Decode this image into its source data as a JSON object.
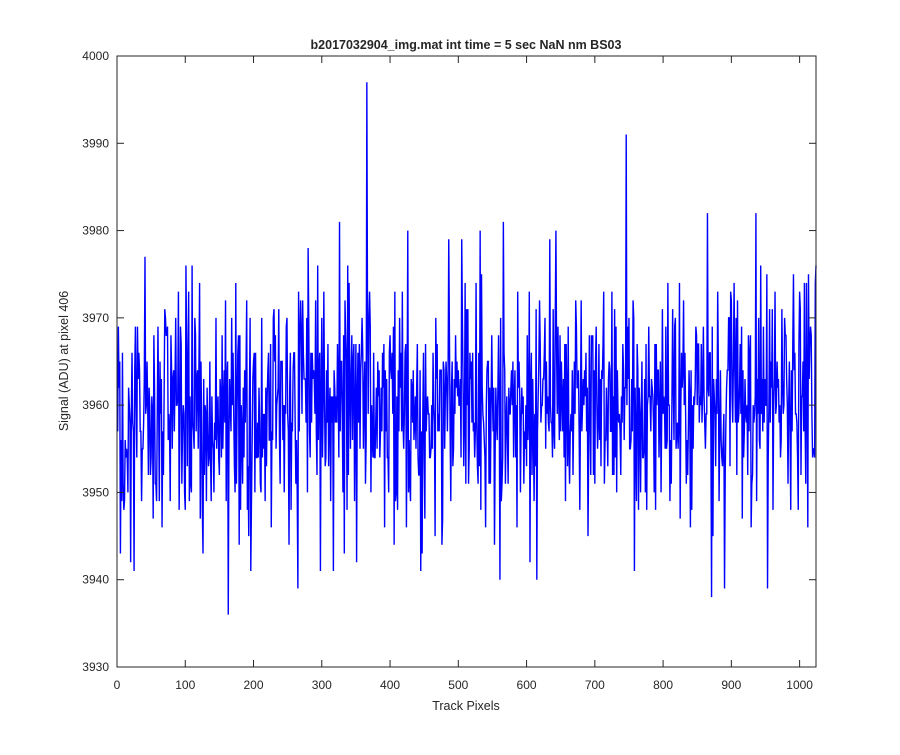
{
  "chart_data": {
    "type": "line",
    "title": "b2017032904_img.mat int time = 5 sec  NaN nm BS03",
    "xlabel": "Track Pixels",
    "ylabel": "Signal (ADU) at pixel 406",
    "xlim": [
      0,
      1024
    ],
    "ylim": [
      3930,
      4000
    ],
    "xticks": [
      0,
      100,
      200,
      300,
      400,
      500,
      600,
      700,
      800,
      900,
      1000
    ],
    "yticks": [
      3930,
      3940,
      3950,
      3960,
      3970,
      3980,
      3990,
      4000
    ],
    "grid": false,
    "series": [
      {
        "name": "",
        "color": "#0000ff",
        "x_start": 1,
        "x_step": 1,
        "noise_seed": 20170329,
        "noise_mean": 3960,
        "noise_std": 6.5,
        "noise_min": 3936,
        "noise_max": 3997,
        "points": [
          [
            1,
            3957
          ],
          [
            5,
            3943
          ],
          [
            8,
            3966
          ],
          [
            12,
            3956
          ],
          [
            16,
            3950
          ],
          [
            20,
            3942
          ],
          [
            25,
            3941
          ],
          [
            30,
            3969
          ],
          [
            36,
            3949
          ],
          [
            41,
            3977
          ],
          [
            47,
            3962
          ],
          [
            53,
            3947
          ],
          [
            60,
            3969
          ],
          [
            66,
            3946
          ],
          [
            72,
            3968
          ],
          [
            78,
            3949
          ],
          [
            85,
            3963
          ],
          [
            91,
            3948
          ],
          [
            98,
            3959
          ],
          [
            101,
            3976
          ],
          [
            106,
            3949
          ],
          [
            110,
            3976
          ],
          [
            116,
            3957
          ],
          [
            121,
            3974
          ],
          [
            126,
            3943
          ],
          [
            132,
            3962
          ],
          [
            138,
            3949
          ],
          [
            145,
            3970
          ],
          [
            150,
            3952
          ],
          [
            156,
            3960
          ],
          [
            163,
            3936
          ],
          [
            168,
            3970
          ],
          [
            174,
            3974
          ],
          [
            181,
            3948
          ],
          [
            189,
            3964
          ],
          [
            196,
            3941
          ],
          [
            203,
            3966
          ],
          [
            210,
            3951
          ],
          [
            218,
            3962
          ],
          [
            226,
            3946
          ],
          [
            232,
            3968
          ],
          [
            238,
            3956
          ],
          [
            245,
            3950
          ],
          [
            252,
            3944
          ],
          [
            258,
            3964
          ],
          [
            265,
            3939
          ],
          [
            272,
            3972
          ],
          [
            279,
            3950
          ],
          [
            286,
            3966
          ],
          [
            293,
            3952
          ],
          [
            300,
            3970
          ],
          [
            306,
            3954
          ],
          [
            313,
            3949
          ],
          [
            319,
            3962
          ],
          [
            326,
            3981
          ],
          [
            333,
            3943
          ],
          [
            338,
            3976
          ],
          [
            345,
            3956
          ],
          [
            351,
            3942
          ],
          [
            357,
            3964
          ],
          [
            366,
            3997
          ],
          [
            372,
            3950
          ],
          [
            379,
            3958
          ],
          [
            385,
            3954
          ],
          [
            392,
            3946
          ],
          [
            399,
            3966
          ],
          [
            406,
            3944
          ],
          [
            413,
            3957
          ],
          [
            420,
            3955
          ],
          [
            426,
            3980
          ],
          [
            432,
            3962
          ],
          [
            438,
            3955
          ],
          [
            445,
            3941
          ],
          [
            452,
            3967
          ],
          [
            459,
            3954
          ],
          [
            466,
            3945
          ],
          [
            473,
            3964
          ],
          [
            480,
            3955
          ],
          [
            486,
            3979
          ],
          [
            492,
            3953
          ],
          [
            499,
            3961
          ],
          [
            505,
            3979
          ],
          [
            511,
            3951
          ],
          [
            518,
            3963
          ],
          [
            525,
            3957
          ],
          [
            532,
            3980
          ],
          [
            539,
            3954
          ],
          [
            546,
            3962
          ],
          [
            553,
            3944
          ],
          [
            560,
            3960
          ],
          [
            566,
            3981
          ],
          [
            572,
            3956
          ],
          [
            579,
            3960
          ],
          [
            586,
            3946
          ],
          [
            593,
            3962
          ],
          [
            600,
            3953
          ],
          [
            607,
            3966
          ],
          [
            615,
            3940
          ],
          [
            622,
            3960
          ],
          [
            628,
            3955
          ],
          [
            634,
            3979
          ],
          [
            640,
            3957
          ],
          [
            647,
            3961
          ],
          [
            654,
            3963
          ],
          [
            660,
            3953
          ],
          [
            666,
            3957
          ],
          [
            672,
            3972
          ],
          [
            678,
            3948
          ],
          [
            684,
            3960
          ],
          [
            690,
            3945
          ],
          [
            697,
            3968
          ],
          [
            704,
            3955
          ],
          [
            711,
            3963
          ],
          [
            718,
            3958
          ],
          [
            725,
            3973
          ],
          [
            732,
            3950
          ],
          [
            739,
            3961
          ],
          [
            746,
            3991
          ],
          [
            752,
            3955
          ],
          [
            758,
            3941
          ],
          [
            765,
            3962
          ],
          [
            772,
            3955
          ],
          [
            779,
            3969
          ],
          [
            786,
            3958
          ],
          [
            793,
            3964
          ],
          [
            800,
            3959
          ],
          [
            808,
            3960
          ],
          [
            815,
            3962
          ],
          [
            822,
            3955
          ],
          [
            829,
            3964
          ],
          [
            836,
            3952
          ],
          [
            843,
            3960
          ],
          [
            850,
            3960
          ],
          [
            857,
            3958
          ],
          [
            865,
            3982
          ],
          [
            871,
            3938
          ],
          [
            877,
            3953
          ],
          [
            884,
            3964
          ],
          [
            890,
            3939
          ],
          [
            896,
            3970
          ],
          [
            902,
            3958
          ],
          [
            909,
            3972
          ],
          [
            916,
            3947
          ],
          [
            922,
            3958
          ],
          [
            929,
            3946
          ],
          [
            935,
            3961
          ],
          [
            941,
            3956
          ],
          [
            947,
            3969
          ],
          [
            953,
            3939
          ],
          [
            959,
            3962
          ],
          [
            966,
            3960
          ],
          [
            973,
            3956
          ],
          [
            980,
            3968
          ],
          [
            987,
            3948
          ],
          [
            994,
            3959
          ],
          [
            1000,
            3973
          ],
          [
            1006,
            3957
          ],
          [
            1012,
            3946
          ],
          [
            1017,
            3968
          ],
          [
            1020,
            3955
          ],
          [
            1024,
            3976
          ]
        ]
      }
    ]
  }
}
